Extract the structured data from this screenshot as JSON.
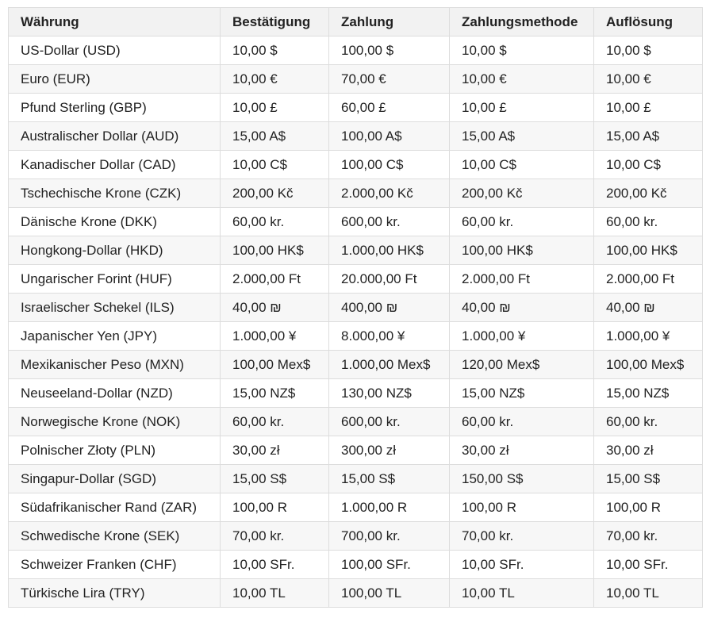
{
  "table": {
    "headers": [
      "Währung",
      "Bestätigung",
      "Zahlung",
      "Zahlungsmethode",
      "Auflösung"
    ],
    "rows": [
      [
        "US-Dollar (USD)",
        "10,00 $",
        "100,00 $",
        "10,00 $",
        "10,00 $"
      ],
      [
        "Euro (EUR)",
        "10,00 €",
        "70,00 €",
        "10,00 €",
        "10,00 €"
      ],
      [
        "Pfund Sterling (GBP)",
        "10,00 £",
        "60,00 £",
        "10,00 £",
        "10,00 £"
      ],
      [
        "Australischer Dollar (AUD)",
        "15,00 A$",
        "100,00 A$",
        "15,00 A$",
        "15,00 A$"
      ],
      [
        "Kanadischer Dollar (CAD)",
        "10,00 C$",
        "100,00 C$",
        "10,00 C$",
        "10,00 C$"
      ],
      [
        "Tschechische Krone (CZK)",
        "200,00 Kč",
        "2.000,00 Kč",
        "200,00 Kč",
        "200,00 Kč"
      ],
      [
        "Dänische Krone (DKK)",
        "60,00 kr.",
        "600,00 kr.",
        "60,00 kr.",
        "60,00 kr."
      ],
      [
        "Hongkong-Dollar (HKD)",
        "100,00 HK$",
        "1.000,00 HK$",
        "100,00 HK$",
        "100,00 HK$"
      ],
      [
        "Ungarischer Forint (HUF)",
        "2.000,00 Ft",
        "20.000,00 Ft",
        "2.000,00 Ft",
        "2.000,00 Ft"
      ],
      [
        "Israelischer Schekel (ILS)",
        "40,00 ₪",
        "400,00 ₪",
        "40,00 ₪",
        "40,00 ₪"
      ],
      [
        "Japanischer Yen (JPY)",
        "1.000,00 ¥",
        "8.000,00 ¥",
        "1.000,00 ¥",
        "1.000,00 ¥"
      ],
      [
        "Mexikanischer Peso (MXN)",
        "100,00 Mex$",
        "1.000,00 Mex$",
        "120,00 Mex$",
        "100,00 Mex$"
      ],
      [
        "Neuseeland-Dollar (NZD)",
        "15,00 NZ$",
        "130,00 NZ$",
        "15,00 NZ$",
        "15,00 NZ$"
      ],
      [
        "Norwegische Krone (NOK)",
        "60,00 kr.",
        "600,00 kr.",
        "60,00 kr.",
        "60,00 kr."
      ],
      [
        "Polnischer Złoty (PLN)",
        "30,00 zł",
        "300,00 zł",
        "30,00 zł",
        "30,00 zł"
      ],
      [
        "Singapur-Dollar (SGD)",
        "15,00 S$",
        "15,00 S$",
        "150,00 S$",
        "15,00 S$"
      ],
      [
        "Südafrikanischer Rand (ZAR)",
        "100,00 R",
        "1.000,00 R",
        "100,00 R",
        "100,00 R"
      ],
      [
        "Schwedische Krone (SEK)",
        "70,00 kr.",
        "700,00 kr.",
        "70,00 kr.",
        "70,00 kr."
      ],
      [
        "Schweizer Franken (CHF)",
        "10,00 SFr.",
        "100,00 SFr.",
        "10,00 SFr.",
        "10,00 SFr."
      ],
      [
        "Türkische Lira (TRY)",
        "10,00 TL",
        "100,00 TL",
        "10,00 TL",
        "10,00 TL"
      ]
    ]
  }
}
